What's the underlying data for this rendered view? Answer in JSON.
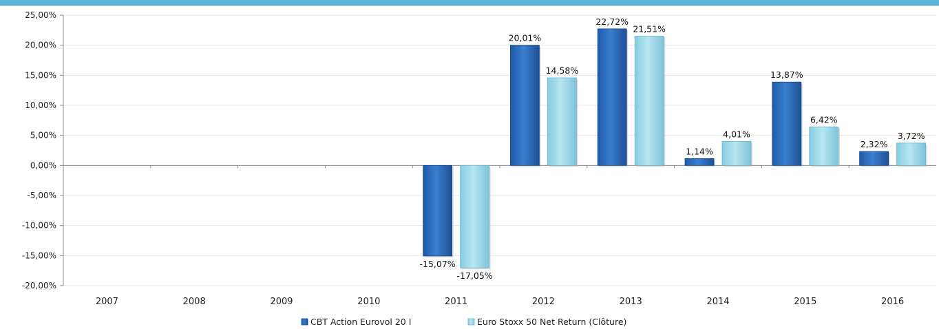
{
  "chart_data": {
    "type": "bar",
    "title": "",
    "xlabel": "",
    "ylabel": "",
    "categories": [
      "2007",
      "2008",
      "2009",
      "2010",
      "2011",
      "2012",
      "2013",
      "2014",
      "2015",
      "2016"
    ],
    "series": [
      {
        "name": "CBT Action Eurovol 20 I",
        "color": "#2e6fbf",
        "values": [
          null,
          null,
          null,
          null,
          -15.07,
          20.01,
          22.72,
          1.14,
          13.87,
          2.32
        ],
        "labels": [
          "",
          "",
          "",
          "",
          "-15,07%",
          "20,01%",
          "22,72%",
          "1,14%",
          "13,87%",
          "2,32%"
        ]
      },
      {
        "name": "Euro Stoxx 50 Net Return (Clôture)",
        "color": "#9fdcec",
        "values": [
          null,
          null,
          null,
          null,
          -17.05,
          14.58,
          21.51,
          4.01,
          6.42,
          3.72
        ],
        "labels": [
          "",
          "",
          "",
          "",
          "-17,05%",
          "14,58%",
          "21,51%",
          "4,01%",
          "6,42%",
          "3,72%"
        ]
      }
    ],
    "ylim": [
      -20,
      25
    ],
    "yticks": [
      25,
      20,
      15,
      10,
      5,
      0,
      -5,
      -10,
      -15,
      -20
    ],
    "ytick_labels": [
      "25,00%",
      "20,00%",
      "15,00%",
      "10,00%",
      "5,00%",
      "0,00%",
      "-5,00%",
      "-10,00%",
      "-15,00%",
      "-20,00%"
    ],
    "grid": true,
    "legend_position": "bottom"
  }
}
